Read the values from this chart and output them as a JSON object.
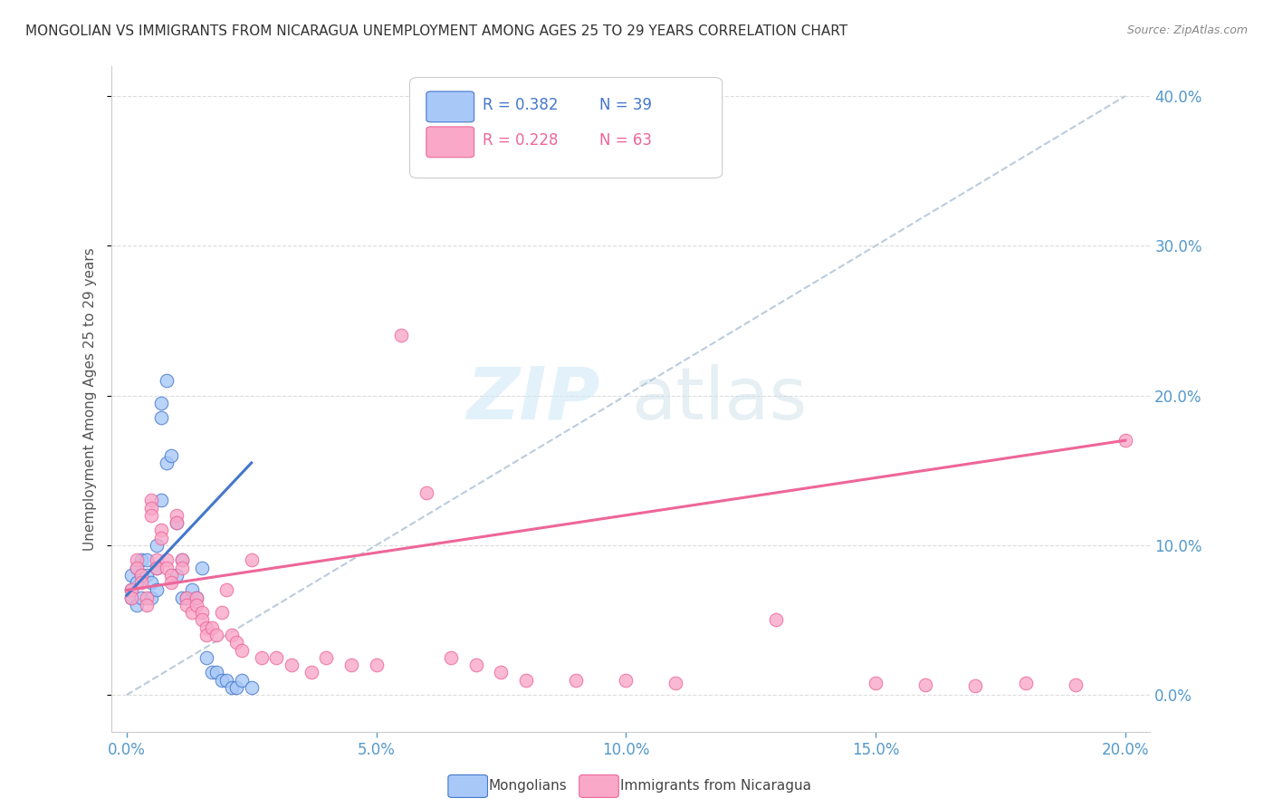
{
  "title": "MONGOLIAN VS IMMIGRANTS FROM NICARAGUA UNEMPLOYMENT AMONG AGES 25 TO 29 YEARS CORRELATION CHART",
  "source": "Source: ZipAtlas.com",
  "ylabel": "Unemployment Among Ages 25 to 29 years",
  "xlim": [
    0.0,
    0.2
  ],
  "ylim": [
    -0.025,
    0.42
  ],
  "legend1_R": "0.382",
  "legend1_N": "39",
  "legend2_R": "0.228",
  "legend2_N": "63",
  "color_mongolian": "#a8c8f8",
  "color_nicaragua": "#f9a8c8",
  "color_line_mongolian": "#4477cc",
  "color_line_nicaragua": "#ee6699",
  "color_diagonal": "#bbccdd",
  "watermark_zip": "ZIP",
  "watermark_atlas": "atlas",
  "mongolian_x": [
    0.001,
    0.001,
    0.001,
    0.002,
    0.002,
    0.002,
    0.003,
    0.003,
    0.003,
    0.004,
    0.004,
    0.005,
    0.005,
    0.006,
    0.006,
    0.006,
    0.007,
    0.007,
    0.007,
    0.008,
    0.008,
    0.009,
    0.01,
    0.01,
    0.011,
    0.011,
    0.012,
    0.013,
    0.014,
    0.015,
    0.016,
    0.017,
    0.018,
    0.019,
    0.02,
    0.021,
    0.022,
    0.023,
    0.025
  ],
  "mongolian_y": [
    0.07,
    0.08,
    0.065,
    0.075,
    0.085,
    0.06,
    0.09,
    0.08,
    0.065,
    0.08,
    0.09,
    0.075,
    0.065,
    0.1,
    0.085,
    0.07,
    0.195,
    0.185,
    0.13,
    0.21,
    0.155,
    0.16,
    0.115,
    0.08,
    0.09,
    0.065,
    0.065,
    0.07,
    0.065,
    0.085,
    0.025,
    0.015,
    0.015,
    0.01,
    0.01,
    0.005,
    0.005,
    0.01,
    0.005
  ],
  "nicaragua_x": [
    0.001,
    0.001,
    0.002,
    0.002,
    0.003,
    0.003,
    0.004,
    0.004,
    0.005,
    0.005,
    0.005,
    0.006,
    0.006,
    0.007,
    0.007,
    0.008,
    0.008,
    0.009,
    0.009,
    0.01,
    0.01,
    0.011,
    0.011,
    0.012,
    0.012,
    0.013,
    0.014,
    0.014,
    0.015,
    0.015,
    0.016,
    0.016,
    0.017,
    0.018,
    0.019,
    0.02,
    0.021,
    0.022,
    0.023,
    0.025,
    0.027,
    0.03,
    0.033,
    0.037,
    0.04,
    0.045,
    0.05,
    0.055,
    0.06,
    0.065,
    0.07,
    0.075,
    0.08,
    0.09,
    0.1,
    0.11,
    0.13,
    0.15,
    0.16,
    0.17,
    0.18,
    0.19,
    0.2
  ],
  "nicaragua_y": [
    0.07,
    0.065,
    0.09,
    0.085,
    0.08,
    0.075,
    0.065,
    0.06,
    0.13,
    0.125,
    0.12,
    0.09,
    0.085,
    0.11,
    0.105,
    0.09,
    0.085,
    0.08,
    0.075,
    0.12,
    0.115,
    0.09,
    0.085,
    0.065,
    0.06,
    0.055,
    0.065,
    0.06,
    0.055,
    0.05,
    0.045,
    0.04,
    0.045,
    0.04,
    0.055,
    0.07,
    0.04,
    0.035,
    0.03,
    0.09,
    0.025,
    0.025,
    0.02,
    0.015,
    0.025,
    0.02,
    0.02,
    0.24,
    0.135,
    0.025,
    0.02,
    0.015,
    0.01,
    0.01,
    0.01,
    0.008,
    0.05,
    0.008,
    0.007,
    0.006,
    0.008,
    0.007,
    0.17
  ]
}
